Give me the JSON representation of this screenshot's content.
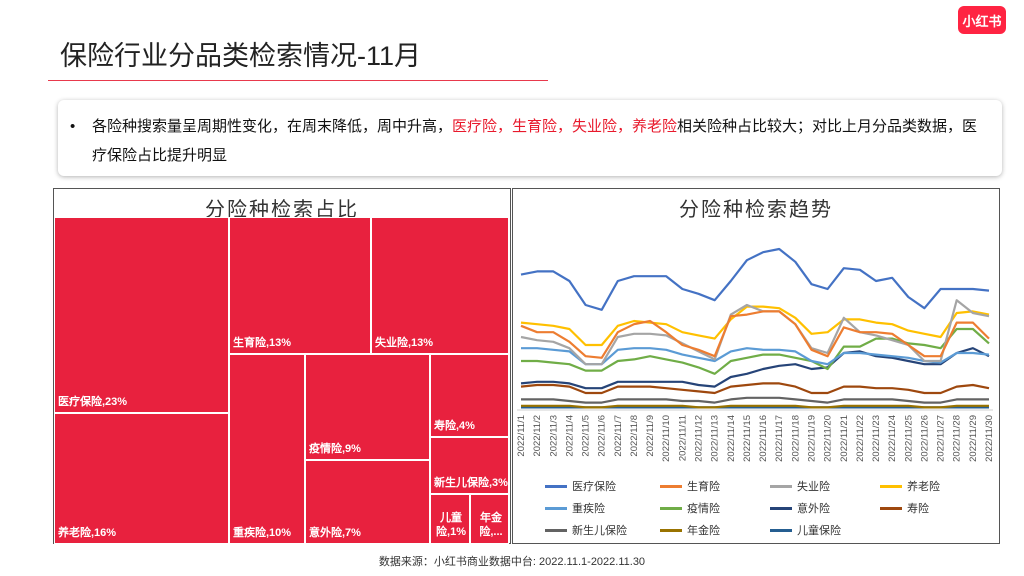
{
  "page": {
    "title": "保险行业分品类检索情况-11月",
    "logo": "小红书",
    "summary": {
      "bullet": "•",
      "text_before": "各险种搜索量呈周期性变化，在周末降低，周中升高，",
      "highlight": "医疗险，生育险，失业险，养老险",
      "text_after": "相关险种占比较大；对比上月分品类数据，医疗保险占比提升明显"
    },
    "source": "数据来源：小红书商业数据中台:   2022.11.1-2022.11.30"
  },
  "chart_data": [
    {
      "type": "treemap",
      "title": "分险种检索占比",
      "color": "#e8213e",
      "items": [
        {
          "label": "医疗保险,23%",
          "value": 23
        },
        {
          "label": "养老险,16%",
          "value": 16
        },
        {
          "label": "生育险,13%",
          "value": 13
        },
        {
          "label": "失业险,13%",
          "value": 13
        },
        {
          "label": "重疾险,10%",
          "value": 10
        },
        {
          "label": "疫情险,9%",
          "value": 9
        },
        {
          "label": "意外险,7%",
          "value": 7
        },
        {
          "label": "寿险,4%",
          "value": 4
        },
        {
          "label": "新生儿保险,3%",
          "value": 3
        },
        {
          "label": "儿童险,1%",
          "value": 1
        },
        {
          "label": "年金险,...",
          "value": 1
        }
      ]
    },
    {
      "type": "line",
      "title": "分险种检索趋势",
      "ylim": [
        0,
        100
      ],
      "categories": [
        "2022/11/1",
        "2022/11/2",
        "2022/11/3",
        "2022/11/4",
        "2022/11/5",
        "2022/11/6",
        "2022/11/7",
        "2022/11/8",
        "2022/11/9",
        "2022/11/10",
        "2022/11/11",
        "2022/11/12",
        "2022/11/13",
        "2022/11/14",
        "2022/11/15",
        "2022/11/16",
        "2022/11/17",
        "2022/11/18",
        "2022/11/19",
        "2022/11/20",
        "2022/11/21",
        "2022/11/22",
        "2022/11/23",
        "2022/11/24",
        "2022/11/25",
        "2022/11/26",
        "2022/11/27",
        "2022/11/28",
        "2022/11/29",
        "2022/11/30"
      ],
      "series": [
        {
          "name": "医疗保险",
          "color": "#4472c4",
          "values": [
            84,
            86,
            86,
            80,
            65,
            62,
            80,
            83,
            83,
            83,
            75,
            72,
            68,
            80,
            93,
            98,
            100,
            92,
            78,
            75,
            88,
            87,
            80,
            82,
            70,
            63,
            75,
            75,
            75,
            74
          ]
        },
        {
          "name": "生育险",
          "color": "#ed7d31",
          "values": [
            52,
            48,
            48,
            42,
            33,
            32,
            48,
            53,
            55,
            48,
            40,
            37,
            33,
            58,
            59,
            61,
            61,
            53,
            37,
            33,
            51,
            48,
            48,
            47,
            40,
            33,
            33,
            54,
            54,
            44
          ]
        },
        {
          "name": "失业险",
          "color": "#a5a5a5",
          "values": [
            45,
            43,
            42,
            38,
            28,
            28,
            45,
            47,
            47,
            46,
            41,
            36,
            31,
            59,
            65,
            61,
            61,
            53,
            38,
            35,
            57,
            48,
            46,
            43,
            40,
            30,
            30,
            68,
            60,
            58
          ]
        },
        {
          "name": "养老险",
          "color": "#ffc000",
          "values": [
            54,
            53,
            52,
            50,
            40,
            40,
            52,
            55,
            54,
            53,
            48,
            46,
            44,
            56,
            64,
            64,
            63,
            57,
            47,
            48,
            56,
            56,
            54,
            53,
            49,
            47,
            45,
            60,
            61,
            59
          ]
        },
        {
          "name": "重疾险",
          "color": "#5b9bd5",
          "values": [
            38,
            38,
            37,
            36,
            28,
            28,
            37,
            38,
            38,
            37,
            34,
            32,
            30,
            36,
            38,
            37,
            37,
            36,
            30,
            28,
            35,
            35,
            34,
            33,
            32,
            30,
            29,
            35,
            35,
            34
          ]
        },
        {
          "name": "疫情险",
          "color": "#70ad47",
          "values": [
            30,
            30,
            29,
            28,
            24,
            24,
            30,
            31,
            33,
            31,
            29,
            26,
            22,
            30,
            32,
            34,
            34,
            32,
            30,
            25,
            39,
            39,
            44,
            44,
            41,
            40,
            38,
            50,
            50,
            41
          ]
        },
        {
          "name": "意外险",
          "color": "#264478",
          "values": [
            16,
            17,
            17,
            16,
            13,
            13,
            17,
            17,
            17,
            17,
            17,
            15,
            14,
            20,
            22,
            25,
            27,
            28,
            25,
            26,
            35,
            36,
            33,
            32,
            30,
            28,
            28,
            35,
            38,
            33
          ]
        },
        {
          "name": "寿险",
          "color": "#9e480e",
          "values": [
            14,
            15,
            15,
            14,
            10,
            10,
            14,
            14,
            14,
            13,
            12,
            11,
            10,
            14,
            15,
            16,
            16,
            14,
            10,
            10,
            14,
            14,
            13,
            13,
            12,
            10,
            10,
            14,
            15,
            13
          ]
        },
        {
          "name": "新生儿保险",
          "color": "#636363",
          "values": [
            6,
            6,
            6,
            5,
            4,
            4,
            6,
            6,
            6,
            6,
            5,
            5,
            4,
            6,
            7,
            7,
            7,
            6,
            5,
            4,
            6,
            6,
            6,
            6,
            5,
            4,
            4,
            6,
            6,
            6
          ]
        },
        {
          "name": "年金险",
          "color": "#997300",
          "values": [
            2,
            2,
            2,
            2,
            1,
            1,
            2,
            2,
            2,
            2,
            2,
            1,
            1,
            2,
            2,
            2,
            2,
            2,
            1,
            1,
            2,
            2,
            2,
            2,
            2,
            1,
            1,
            2,
            2,
            2
          ]
        },
        {
          "name": "儿童保险",
          "color": "#255e91",
          "values": [
            1,
            1,
            1,
            1,
            1,
            1,
            1,
            1,
            1,
            1,
            1,
            1,
            1,
            1,
            1,
            1,
            1,
            1,
            1,
            1,
            1,
            1,
            1,
            1,
            1,
            1,
            1,
            1,
            1,
            1
          ]
        }
      ]
    }
  ]
}
